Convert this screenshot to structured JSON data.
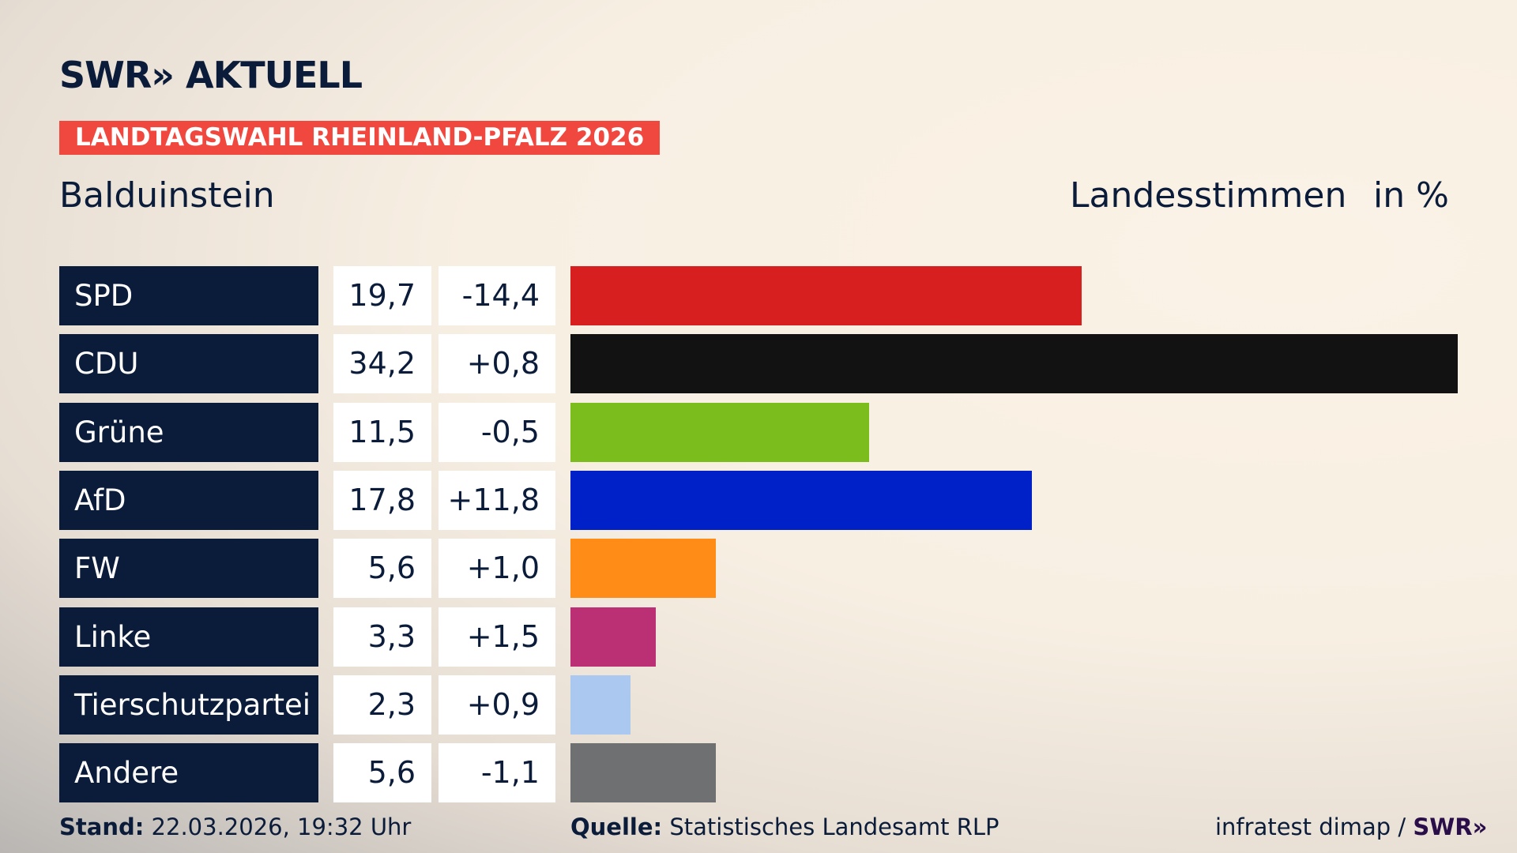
{
  "header": {
    "logo": "SWR» AKTUELL",
    "banner": "LANDTAGSWAHL RHEINLAND-PFALZ 2026",
    "place": "Balduinstein",
    "votes_type": "Landesstimmen",
    "unit": "in %"
  },
  "chart_data": {
    "type": "bar",
    "orientation": "horizontal",
    "categories": [
      "SPD",
      "CDU",
      "Grüne",
      "AfD",
      "FW",
      "Linke",
      "Tierschutzpartei",
      "Andere"
    ],
    "values": [
      19.7,
      34.2,
      11.5,
      17.8,
      5.6,
      3.3,
      2.3,
      5.6
    ],
    "value_labels": [
      "19,7",
      "34,2",
      "11,5",
      "17,8",
      "5,6",
      "3,3",
      "2,3",
      "5,6"
    ],
    "diff_labels": [
      "-14,4",
      "+0,8",
      "-0,5",
      "+11,8",
      "+1,0",
      "+1,5",
      "+0,9",
      "-1,1"
    ],
    "colors": [
      "#d81f20",
      "#121212",
      "#7bbd1c",
      "#0021c8",
      "#fe8c17",
      "#bb2f74",
      "#abc8f0",
      "#6f7072"
    ]
  },
  "footer": {
    "stand_label": "Stand:",
    "stand_value": "22.03.2026, 19:32 Uhr",
    "source_label": "Quelle:",
    "source_value": "Statistisches Landesamt RLP",
    "credit": "infratest dimap /",
    "credit_logo": "SWR»"
  }
}
